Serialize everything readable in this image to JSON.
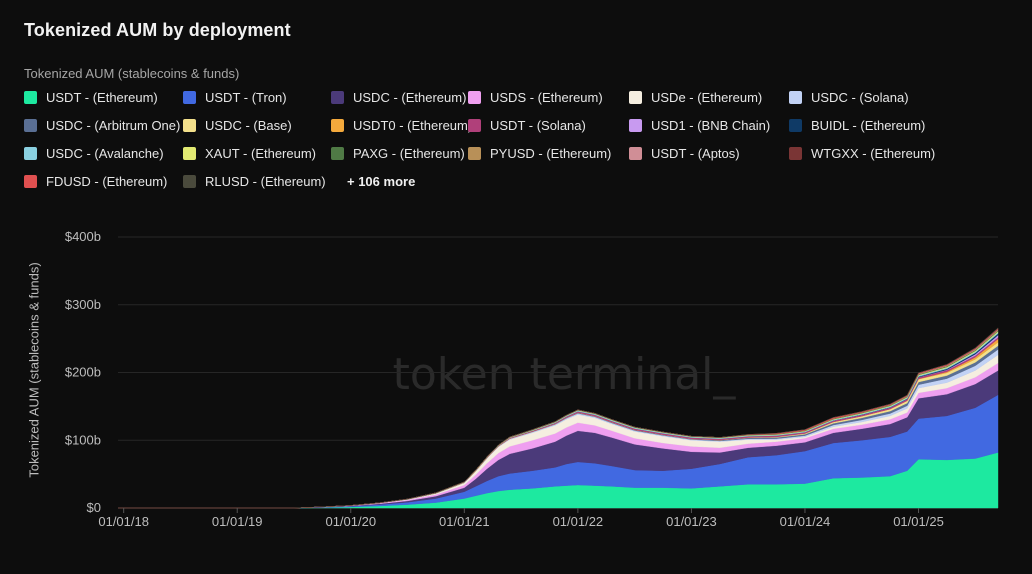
{
  "header": {
    "title": "Tokenized AUM by deployment",
    "subtitle": "Tokenized AUM (stablecoins & funds)"
  },
  "legend": {
    "rows": [
      [
        {
          "label": "USDT - (Ethereum)",
          "color": "#1de9a0"
        },
        {
          "label": "USDT - (Tron)",
          "color": "#4169e1"
        },
        {
          "label": "USDC - (Ethereum)",
          "color": "#4b3a7a"
        },
        {
          "label": "USDS - (Ethereum)",
          "color": "#ef9ff0"
        },
        {
          "label": "USDe - (Ethereum)",
          "color": "#f5eee0"
        },
        {
          "label": "USDC - (Solana)",
          "color": "#c2d2f5"
        }
      ],
      [
        {
          "label": "USDC - (Arbitrum One)",
          "color": "#5a6f94"
        },
        {
          "label": "USDC - (Base)",
          "color": "#f3e08b"
        },
        {
          "label": "USDT0 - (Ethereum)",
          "color": "#f4a93c"
        },
        {
          "label": "USDT - (Solana)",
          "color": "#b0407a"
        },
        {
          "label": "USD1 - (BNB Chain)",
          "color": "#c89af0"
        },
        {
          "label": "BUIDL - (Ethereum)",
          "color": "#0f3a66"
        }
      ],
      [
        {
          "label": "USDC - (Avalanche)",
          "color": "#8ad0e0"
        },
        {
          "label": "XAUT - (Ethereum)",
          "color": "#e2ea72"
        },
        {
          "label": "PAXG - (Ethereum)",
          "color": "#4f7a45"
        },
        {
          "label": "PYUSD - (Ethereum)",
          "color": "#b89058"
        },
        {
          "label": "USDT - (Aptos)",
          "color": "#d08e96"
        },
        {
          "label": "WTGXX - (Ethereum)",
          "color": "#7a3535"
        }
      ],
      [
        {
          "label": "FDUSD - (Ethereum)",
          "color": "#e05050"
        },
        {
          "label": "RLUSD - (Ethereum)",
          "color": "#4a4a3c"
        }
      ]
    ],
    "more_label": "+ 106 more"
  },
  "watermark": "token terminal_",
  "chart_data": {
    "type": "area",
    "stacked": true,
    "title": "Tokenized AUM by deployment",
    "ylabel": "Tokenized AUM (stablecoins & funds)",
    "xlabel": "",
    "ylim": [
      0,
      400
    ],
    "y_unit": "billions USD",
    "y_ticks": [
      {
        "value": 0,
        "label": "$0"
      },
      {
        "value": 100,
        "label": "$100b"
      },
      {
        "value": 200,
        "label": "$200b"
      },
      {
        "value": 300,
        "label": "$300b"
      },
      {
        "value": 400,
        "label": "$400b"
      }
    ],
    "x_range": [
      2017.95,
      2025.7
    ],
    "x_ticks": [
      {
        "value": 2018,
        "label": "01/01/18"
      },
      {
        "value": 2019,
        "label": "01/01/19"
      },
      {
        "value": 2020,
        "label": "01/01/20"
      },
      {
        "value": 2021,
        "label": "01/01/21"
      },
      {
        "value": 2022,
        "label": "01/01/22"
      },
      {
        "value": 2023,
        "label": "01/01/23"
      },
      {
        "value": 2024,
        "label": "01/01/24"
      },
      {
        "value": 2025,
        "label": "01/01/25"
      }
    ],
    "x": [
      2017.95,
      2019.5,
      2019.75,
      2020.0,
      2020.25,
      2020.5,
      2020.75,
      2021.0,
      2021.1,
      2021.2,
      2021.3,
      2021.4,
      2021.6,
      2021.8,
      2021.9,
      2022.0,
      2022.15,
      2022.3,
      2022.5,
      2022.75,
      2023.0,
      2023.25,
      2023.5,
      2023.75,
      2024.0,
      2024.25,
      2024.5,
      2024.75,
      2024.9,
      2025.0,
      2025.25,
      2025.5,
      2025.7
    ],
    "series": [
      {
        "name": "USDT - (Ethereum)",
        "color": "#1de9a0",
        "values": [
          0,
          0,
          0.5,
          1.5,
          3,
          5,
          8,
          14,
          18,
          22,
          25,
          27,
          29,
          32,
          33,
          34,
          33,
          32,
          30,
          30,
          29,
          32,
          35,
          35,
          36,
          44,
          45,
          47,
          55,
          72,
          71,
          73,
          82
        ]
      },
      {
        "name": "USDT - (Tron)",
        "color": "#4169e1",
        "values": [
          0,
          0,
          0.5,
          1,
          2,
          3.5,
          6,
          10,
          14,
          18,
          22,
          24,
          26,
          28,
          32,
          34,
          33,
          30,
          26,
          25,
          29,
          33,
          40,
          43,
          48,
          52,
          55,
          58,
          58,
          60,
          65,
          75,
          85
        ]
      },
      {
        "name": "USDC - (Ethereum)",
        "color": "#4b3a7a",
        "values": [
          0,
          0,
          0.3,
          0.6,
          1.2,
          2,
          3.5,
          6,
          11,
          18,
          24,
          29,
          33,
          38,
          42,
          46,
          45,
          42,
          38,
          33,
          25,
          17,
          14,
          14,
          13,
          15,
          17,
          19,
          21,
          30,
          32,
          35,
          36
        ]
      },
      {
        "name": "USDS - (Ethereum)",
        "color": "#ef9ff0",
        "values": [
          0,
          0,
          0.2,
          0.4,
          0.8,
          1.5,
          2.5,
          4,
          6,
          8,
          10,
          11,
          12,
          12,
          12,
          12,
          11,
          10,
          9,
          8,
          8,
          7,
          6,
          6,
          6,
          6,
          6,
          7,
          7,
          8,
          9,
          10,
          11
        ]
      },
      {
        "name": "USDe - (Ethereum)",
        "color": "#f5eee0",
        "values": [
          0,
          0,
          0.1,
          0.2,
          0.5,
          0.8,
          1.5,
          3,
          5,
          7,
          9,
          10,
          11,
          12,
          12,
          12,
          11,
          10,
          10,
          10,
          9,
          9,
          6,
          3,
          2,
          3,
          4,
          5,
          6,
          7,
          8,
          10,
          12
        ]
      },
      {
        "name": "USDC - (Solana)",
        "color": "#c2d2f5",
        "values": [
          0,
          0,
          0,
          0,
          0,
          0.1,
          0.2,
          0.4,
          0.6,
          0.8,
          1,
          1.2,
          1.3,
          1.5,
          1.6,
          1.7,
          1.6,
          1.5,
          1.3,
          1.2,
          1.1,
          1.1,
          1.2,
          1.4,
          1.8,
          2.5,
          3,
          3.5,
          4,
          5,
          6,
          7,
          8
        ]
      },
      {
        "name": "USDC - (Arbitrum One)",
        "color": "#5a6f94",
        "values": [
          0,
          0,
          0,
          0,
          0,
          0,
          0,
          0,
          0,
          0,
          0,
          0.2,
          0.4,
          0.6,
          0.8,
          1,
          1,
          1,
          1,
          1,
          1,
          1.2,
          1.5,
          1.8,
          2,
          2.5,
          3,
          3.5,
          3.8,
          4,
          4.5,
          5,
          5.5
        ]
      },
      {
        "name": "USDC - (Base)",
        "color": "#f3e08b",
        "values": [
          0,
          0,
          0,
          0,
          0,
          0,
          0,
          0,
          0,
          0,
          0,
          0,
          0,
          0,
          0,
          0,
          0,
          0,
          0,
          0,
          0,
          0,
          0.3,
          0.8,
          1.2,
          2,
          2.5,
          3,
          3.5,
          4,
          4,
          4.5,
          5
        ]
      },
      {
        "name": "USDT0 - (Ethereum)",
        "color": "#f4a93c",
        "values": [
          0,
          0,
          0,
          0,
          0,
          0,
          0,
          0,
          0,
          0,
          0,
          0,
          0,
          0,
          0,
          0,
          0,
          0,
          0,
          0,
          0,
          0,
          0,
          0,
          0,
          0,
          0,
          0,
          0,
          0.5,
          1.5,
          3,
          5
        ]
      },
      {
        "name": "USDT - (Solana)",
        "color": "#b0407a",
        "values": [
          0,
          0,
          0,
          0,
          0,
          0,
          0.2,
          0.4,
          0.6,
          0.8,
          1,
          1.2,
          1.4,
          1.6,
          1.8,
          2,
          2,
          2,
          2,
          2,
          2,
          2,
          2,
          2,
          2,
          2,
          2,
          2.2,
          2.4,
          2.5,
          2.5,
          2.5,
          2.5
        ]
      },
      {
        "name": "USD1 - (BNB Chain)",
        "color": "#c89af0",
        "values": [
          0,
          0,
          0,
          0,
          0,
          0,
          0,
          0,
          0,
          0,
          0,
          0,
          0,
          0,
          0,
          0,
          0,
          0,
          0,
          0,
          0,
          0,
          0,
          0,
          0,
          0,
          0,
          0,
          0,
          0,
          0.5,
          2,
          3
        ]
      },
      {
        "name": "BUIDL - (Ethereum)",
        "color": "#0f3a66",
        "values": [
          0,
          0,
          0,
          0,
          0,
          0,
          0,
          0,
          0,
          0,
          0,
          0,
          0,
          0,
          0,
          0,
          0,
          0,
          0,
          0,
          0,
          0,
          0,
          0,
          0,
          0.3,
          0.5,
          0.6,
          0.8,
          1,
          1.5,
          2,
          2.5
        ]
      },
      {
        "name": "USDC - (Avalanche)",
        "color": "#8ad0e0",
        "values": [
          0,
          0,
          0,
          0,
          0,
          0,
          0,
          0,
          0,
          0,
          0,
          0.2,
          0.4,
          0.6,
          0.8,
          1,
          1,
          1,
          1,
          0.9,
          0.8,
          0.8,
          0.8,
          0.8,
          0.9,
          1,
          1.1,
          1.2,
          1.3,
          1.4,
          1.5,
          1.6,
          1.7
        ]
      },
      {
        "name": "XAUT - (Ethereum)",
        "color": "#e2ea72",
        "values": [
          0,
          0,
          0,
          0,
          0,
          0.1,
          0.2,
          0.3,
          0.3,
          0.4,
          0.4,
          0.4,
          0.5,
          0.5,
          0.5,
          0.5,
          0.5,
          0.5,
          0.5,
          0.5,
          0.5,
          0.5,
          0.6,
          0.6,
          0.6,
          0.7,
          0.8,
          0.8,
          0.9,
          1,
          1.2,
          1.4,
          1.6
        ]
      },
      {
        "name": "PAXG - (Ethereum)",
        "color": "#4f7a45",
        "values": [
          0,
          0,
          0,
          0.1,
          0.1,
          0.2,
          0.3,
          0.4,
          0.5,
          0.5,
          0.5,
          0.6,
          0.6,
          0.6,
          0.6,
          0.6,
          0.6,
          0.6,
          0.6,
          0.5,
          0.5,
          0.5,
          0.5,
          0.5,
          0.5,
          0.6,
          0.6,
          0.7,
          0.7,
          0.8,
          0.9,
          1,
          1.1
        ]
      },
      {
        "name": "PYUSD - (Ethereum)",
        "color": "#b89058",
        "values": [
          0,
          0,
          0,
          0,
          0,
          0,
          0,
          0,
          0,
          0,
          0,
          0,
          0,
          0,
          0,
          0,
          0,
          0,
          0,
          0,
          0,
          0,
          0.2,
          0.4,
          0.5,
          0.5,
          0.6,
          0.6,
          0.6,
          0.6,
          0.7,
          0.8,
          0.9
        ]
      },
      {
        "name": "USDT - (Aptos)",
        "color": "#d08e96",
        "values": [
          0,
          0,
          0,
          0,
          0,
          0,
          0,
          0,
          0,
          0,
          0,
          0,
          0,
          0,
          0,
          0,
          0,
          0,
          0,
          0,
          0,
          0,
          0,
          0,
          0,
          0,
          0,
          0.3,
          0.5,
          0.6,
          0.7,
          0.8,
          0.9
        ]
      },
      {
        "name": "WTGXX - (Ethereum)",
        "color": "#7a3535",
        "values": [
          0,
          0,
          0,
          0,
          0,
          0,
          0,
          0,
          0,
          0,
          0,
          0,
          0,
          0,
          0,
          0,
          0,
          0,
          0,
          0,
          0,
          0,
          0,
          0,
          0,
          0,
          0,
          0,
          0,
          0,
          0.2,
          0.4,
          0.6
        ]
      },
      {
        "name": "FDUSD - (Ethereum)",
        "color": "#e05050",
        "values": [
          0,
          0,
          0,
          0,
          0,
          0,
          0,
          0,
          0,
          0,
          0,
          0,
          0,
          0,
          0,
          0,
          0,
          0,
          0,
          0,
          0,
          0,
          0.5,
          1,
          1.2,
          1.5,
          1.2,
          1,
          1,
          1,
          1,
          0.9,
          0.9
        ]
      },
      {
        "name": "RLUSD - (Ethereum)",
        "color": "#4a4a3c",
        "values": [
          0,
          0,
          0,
          0,
          0,
          0,
          0,
          0,
          0,
          0,
          0,
          0,
          0,
          0,
          0,
          0,
          0,
          0,
          0,
          0,
          0,
          0,
          0,
          0,
          0,
          0,
          0,
          0,
          0,
          0.1,
          0.3,
          0.5,
          0.7
        ]
      }
    ]
  }
}
